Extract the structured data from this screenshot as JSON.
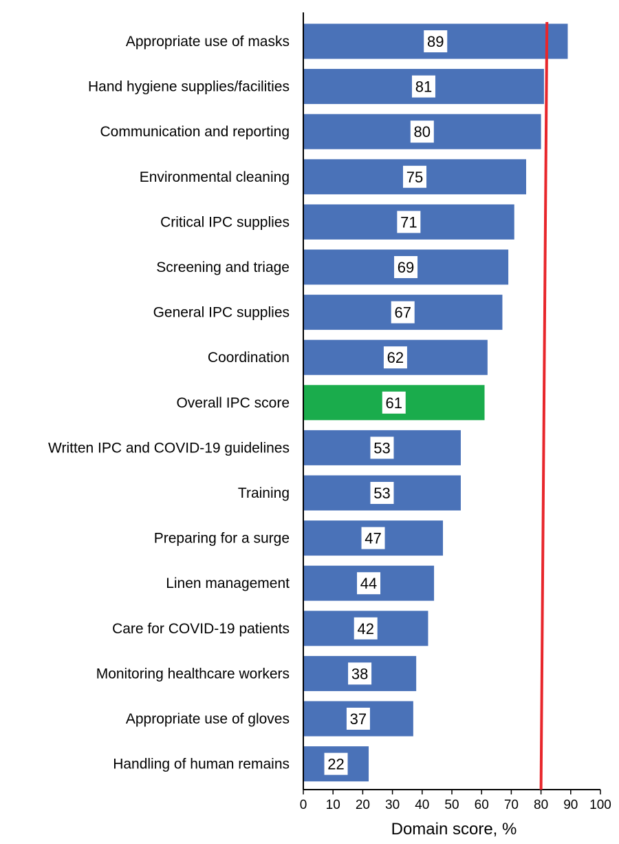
{
  "chart_data": {
    "type": "bar",
    "orientation": "horizontal",
    "categories": [
      "Appropriate use of masks",
      "Hand hygiene supplies/facilities",
      "Communication and reporting",
      "Environmental cleaning",
      "Critical IPC supplies",
      "Screening and triage",
      "General IPC supplies",
      "Coordination",
      "Overall IPC score",
      "Written IPC and COVID-19 guidelines",
      "Training",
      "Preparing for a surge",
      "Linen management",
      "Care for COVID-19 patients",
      "Monitoring healthcare workers",
      "Appropriate use of gloves",
      "Handling of human remains"
    ],
    "values": [
      89,
      81,
      80,
      75,
      71,
      69,
      67,
      62,
      61,
      53,
      53,
      47,
      44,
      42,
      38,
      37,
      22
    ],
    "value_labels": [
      "89",
      "81",
      "80",
      "75",
      "71",
      "69",
      "67",
      "62",
      "61",
      "53",
      "53",
      "47",
      "44",
      "42",
      "38",
      "37",
      "22"
    ],
    "highlight_category": "Overall IPC score",
    "xlabel": "Domain score, %",
    "xlim": [
      0,
      100
    ],
    "xticks": [
      "0",
      "10",
      "20",
      "30",
      "40",
      "50",
      "60",
      "70",
      "80",
      "90",
      "100"
    ],
    "reference_line": {
      "from": 80,
      "to": 82
    },
    "grid": false,
    "colors": {
      "bar": "#4a72b8",
      "highlight": "#1aac4c",
      "reference_line": "#e8262b",
      "label_box": "#ffffff"
    }
  }
}
